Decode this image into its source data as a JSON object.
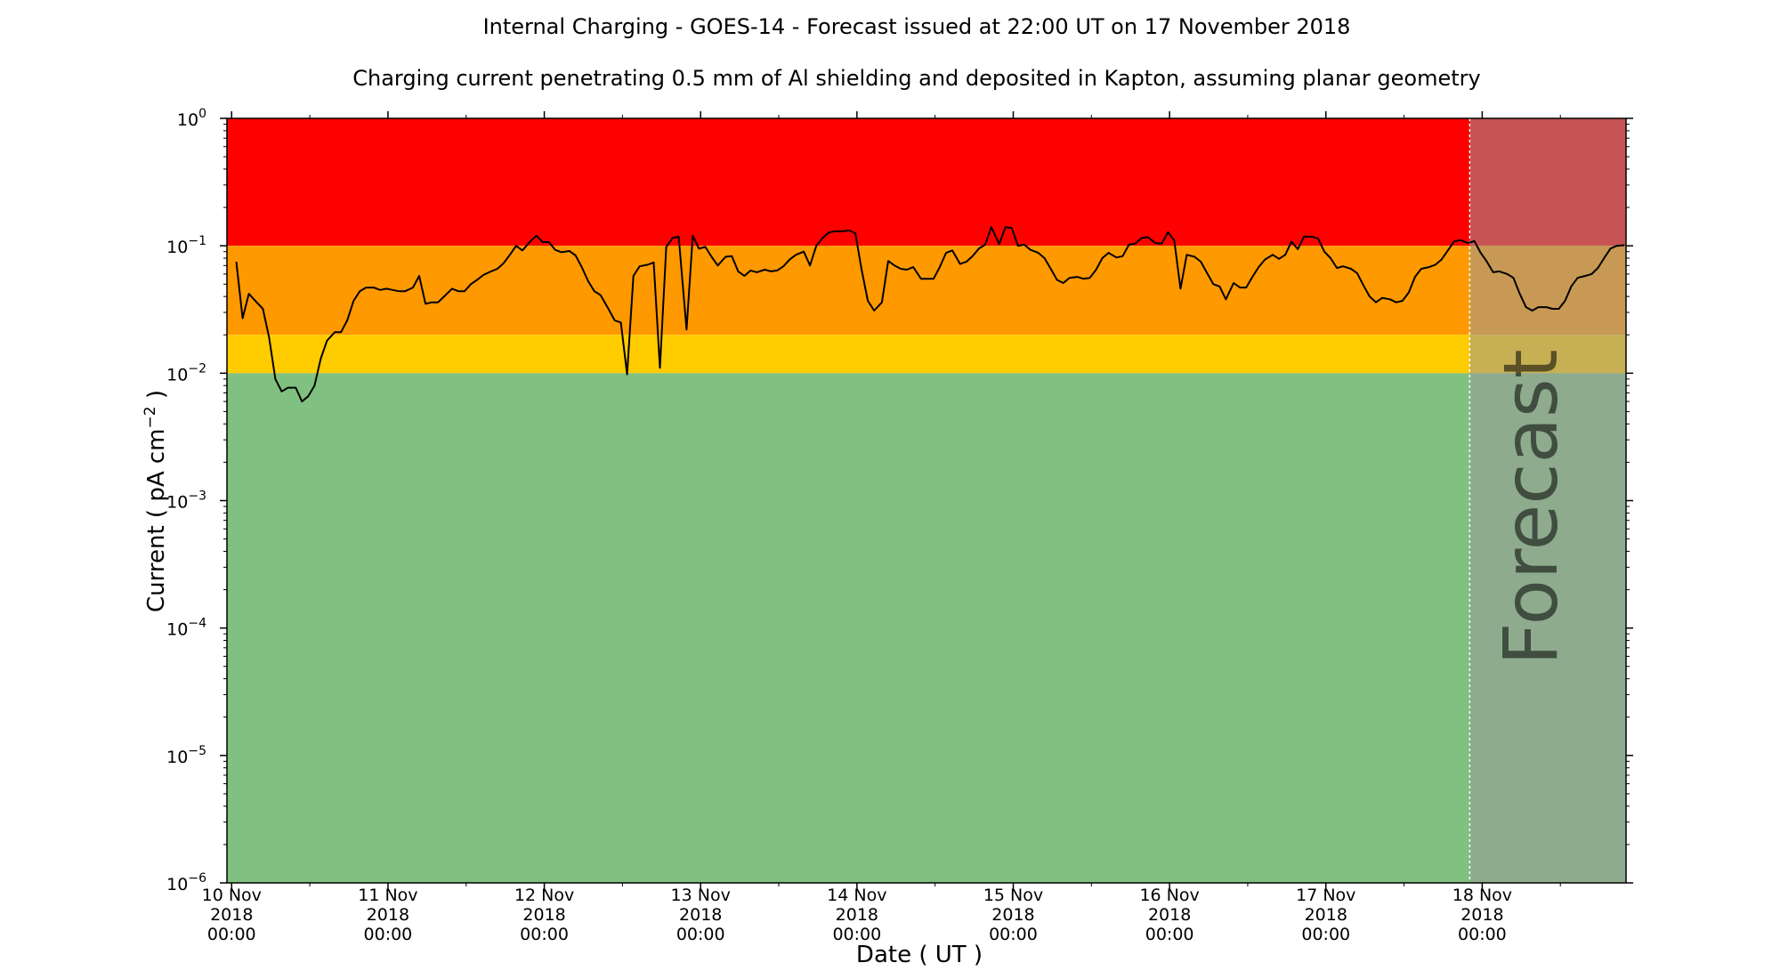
{
  "chart_data": {
    "type": "line",
    "title": "Internal Charging - GOES-14 - Forecast issued at 22:00 UT on 17 November 2018",
    "subtitle": "Charging current penetrating 0.5 mm of Al shielding and deposited in Kapton, assuming planar geometry",
    "xlabel": "Date ( UT )",
    "ylabel": "Current ( pA cm",
    "ylabel_unit_exponent": "−2",
    "ylabel_suffix": " )",
    "y_scale": "log",
    "ylim": [
      1e-06,
      1
    ],
    "xlim_days": [
      -0.03,
      8.92
    ],
    "x_ticks": [
      {
        "day": 0,
        "l1": "10 Nov",
        "l2": "2018",
        "l3": "00:00"
      },
      {
        "day": 1,
        "l1": "11 Nov",
        "l2": "2018",
        "l3": "00:00"
      },
      {
        "day": 2,
        "l1": "12 Nov",
        "l2": "2018",
        "l3": "00:00"
      },
      {
        "day": 3,
        "l1": "13 Nov",
        "l2": "2018",
        "l3": "00:00"
      },
      {
        "day": 4,
        "l1": "14 Nov",
        "l2": "2018",
        "l3": "00:00"
      },
      {
        "day": 5,
        "l1": "15 Nov",
        "l2": "2018",
        "l3": "00:00"
      },
      {
        "day": 6,
        "l1": "16 Nov",
        "l2": "2018",
        "l3": "00:00"
      },
      {
        "day": 7,
        "l1": "17 Nov",
        "l2": "2018",
        "l3": "00:00"
      },
      {
        "day": 8,
        "l1": "18 Nov",
        "l2": "2018",
        "l3": "00:00"
      }
    ],
    "y_ticks": [
      {
        "value": 1,
        "base": "10",
        "exp": "0"
      },
      {
        "value": 0.1,
        "base": "10",
        "exp": "−1"
      },
      {
        "value": 0.01,
        "base": "10",
        "exp": "−2"
      },
      {
        "value": 0.001,
        "base": "10",
        "exp": "−3"
      },
      {
        "value": 0.0001,
        "base": "10",
        "exp": "−4"
      },
      {
        "value": 1e-05,
        "base": "10",
        "exp": "−5"
      },
      {
        "value": 1e-06,
        "base": "10",
        "exp": "−6"
      }
    ],
    "bands": [
      {
        "level": "red",
        "from": 0.1,
        "to": 1,
        "color": "#ff0000"
      },
      {
        "level": "orange",
        "from": 0.02,
        "to": 0.1,
        "color": "#ff9900"
      },
      {
        "level": "yellow",
        "from": 0.01,
        "to": 0.02,
        "color": "#ffcc00"
      },
      {
        "level": "green",
        "from": 1e-06,
        "to": 0.01,
        "color": "#80c080"
      }
    ],
    "forecast": {
      "start_day": 7.92,
      "label": "Forecast",
      "shade_color": "#999999",
      "shade_opacity": 0.55
    },
    "series": [
      {
        "line_color": "#000000",
        "points": [
          [
            0.03,
            0.075
          ],
          [
            0.07,
            0.027
          ],
          [
            0.11,
            0.042
          ],
          [
            0.16,
            0.036
          ],
          [
            0.2,
            0.032
          ],
          [
            0.24,
            0.019
          ],
          [
            0.28,
            0.009
          ],
          [
            0.32,
            0.0072
          ],
          [
            0.36,
            0.0077
          ],
          [
            0.41,
            0.0077
          ],
          [
            0.45,
            0.006
          ],
          [
            0.49,
            0.0066
          ],
          [
            0.53,
            0.008
          ],
          [
            0.57,
            0.013
          ],
          [
            0.61,
            0.018
          ],
          [
            0.66,
            0.021
          ],
          [
            0.7,
            0.021
          ],
          [
            0.74,
            0.026
          ],
          [
            0.78,
            0.037
          ],
          [
            0.82,
            0.044
          ],
          [
            0.86,
            0.047
          ],
          [
            0.91,
            0.047
          ],
          [
            0.95,
            0.045
          ],
          [
            0.99,
            0.046
          ],
          [
            1.03,
            0.045
          ],
          [
            1.07,
            0.044
          ],
          [
            1.11,
            0.044
          ],
          [
            1.16,
            0.047
          ],
          [
            1.2,
            0.058
          ],
          [
            1.24,
            0.035
          ],
          [
            1.28,
            0.036
          ],
          [
            1.32,
            0.036
          ],
          [
            1.36,
            0.04
          ],
          [
            1.41,
            0.046
          ],
          [
            1.45,
            0.044
          ],
          [
            1.49,
            0.044
          ],
          [
            1.53,
            0.05
          ],
          [
            1.57,
            0.054
          ],
          [
            1.61,
            0.059
          ],
          [
            1.66,
            0.063
          ],
          [
            1.7,
            0.066
          ],
          [
            1.74,
            0.073
          ],
          [
            1.78,
            0.085
          ],
          [
            1.82,
            0.1
          ],
          [
            1.86,
            0.092
          ],
          [
            1.91,
            0.108
          ],
          [
            1.95,
            0.12
          ],
          [
            1.99,
            0.107
          ],
          [
            2.03,
            0.107
          ],
          [
            2.07,
            0.093
          ],
          [
            2.11,
            0.089
          ],
          [
            2.16,
            0.091
          ],
          [
            2.2,
            0.084
          ],
          [
            2.24,
            0.068
          ],
          [
            2.28,
            0.053
          ],
          [
            2.32,
            0.044
          ],
          [
            2.36,
            0.041
          ],
          [
            2.41,
            0.032
          ],
          [
            2.45,
            0.026
          ],
          [
            2.49,
            0.025
          ],
          [
            2.53,
            0.0098
          ],
          [
            2.57,
            0.058
          ],
          [
            2.61,
            0.069
          ],
          [
            2.66,
            0.071
          ],
          [
            2.7,
            0.074
          ],
          [
            2.74,
            0.011
          ],
          [
            2.78,
            0.098
          ],
          [
            2.82,
            0.115
          ],
          [
            2.86,
            0.118
          ],
          [
            2.91,
            0.022
          ],
          [
            2.95,
            0.12
          ],
          [
            2.99,
            0.095
          ],
          [
            3.03,
            0.098
          ],
          [
            3.07,
            0.082
          ],
          [
            3.11,
            0.07
          ],
          [
            3.16,
            0.082
          ],
          [
            3.2,
            0.083
          ],
          [
            3.24,
            0.063
          ],
          [
            3.28,
            0.058
          ],
          [
            3.32,
            0.064
          ],
          [
            3.36,
            0.062
          ],
          [
            3.41,
            0.065
          ],
          [
            3.45,
            0.063
          ],
          [
            3.49,
            0.064
          ],
          [
            3.53,
            0.069
          ],
          [
            3.57,
            0.078
          ],
          [
            3.61,
            0.085
          ],
          [
            3.66,
            0.09
          ],
          [
            3.7,
            0.07
          ],
          [
            3.74,
            0.1
          ],
          [
            3.78,
            0.115
          ],
          [
            3.82,
            0.127
          ],
          [
            3.86,
            0.13
          ],
          [
            3.91,
            0.13
          ],
          [
            3.95,
            0.132
          ],
          [
            3.99,
            0.125
          ],
          [
            4.03,
            0.065
          ],
          [
            4.07,
            0.037
          ],
          [
            4.11,
            0.031
          ],
          [
            4.16,
            0.036
          ],
          [
            4.2,
            0.076
          ],
          [
            4.24,
            0.07
          ],
          [
            4.28,
            0.066
          ],
          [
            4.32,
            0.065
          ],
          [
            4.36,
            0.068
          ],
          [
            4.41,
            0.055
          ],
          [
            4.45,
            0.055
          ],
          [
            4.49,
            0.055
          ],
          [
            4.53,
            0.068
          ],
          [
            4.57,
            0.088
          ],
          [
            4.61,
            0.092
          ],
          [
            4.66,
            0.072
          ],
          [
            4.7,
            0.075
          ],
          [
            4.74,
            0.083
          ],
          [
            4.78,
            0.095
          ],
          [
            4.82,
            0.102
          ],
          [
            4.86,
            0.14
          ],
          [
            4.91,
            0.103
          ],
          [
            4.95,
            0.14
          ],
          [
            4.99,
            0.138
          ],
          [
            5.03,
            0.1
          ],
          [
            5.07,
            0.102
          ],
          [
            5.11,
            0.093
          ],
          [
            5.16,
            0.088
          ],
          [
            5.2,
            0.08
          ],
          [
            5.24,
            0.066
          ],
          [
            5.28,
            0.054
          ],
          [
            5.32,
            0.051
          ],
          [
            5.36,
            0.056
          ],
          [
            5.41,
            0.057
          ],
          [
            5.45,
            0.055
          ],
          [
            5.49,
            0.056
          ],
          [
            5.53,
            0.065
          ],
          [
            5.57,
            0.08
          ],
          [
            5.61,
            0.088
          ],
          [
            5.66,
            0.081
          ],
          [
            5.7,
            0.083
          ],
          [
            5.74,
            0.102
          ],
          [
            5.78,
            0.104
          ],
          [
            5.82,
            0.115
          ],
          [
            5.86,
            0.117
          ],
          [
            5.91,
            0.105
          ],
          [
            5.95,
            0.104
          ],
          [
            5.99,
            0.128
          ],
          [
            6.03,
            0.11
          ],
          [
            6.07,
            0.046
          ],
          [
            6.11,
            0.085
          ],
          [
            6.16,
            0.082
          ],
          [
            6.2,
            0.075
          ],
          [
            6.24,
            0.061
          ],
          [
            6.28,
            0.05
          ],
          [
            6.32,
            0.048
          ],
          [
            6.36,
            0.038
          ],
          [
            6.41,
            0.051
          ],
          [
            6.45,
            0.047
          ],
          [
            6.49,
            0.047
          ],
          [
            6.53,
            0.057
          ],
          [
            6.57,
            0.068
          ],
          [
            6.61,
            0.078
          ],
          [
            6.66,
            0.085
          ],
          [
            6.7,
            0.079
          ],
          [
            6.74,
            0.085
          ],
          [
            6.78,
            0.108
          ],
          [
            6.82,
            0.094
          ],
          [
            6.86,
            0.118
          ],
          [
            6.91,
            0.118
          ],
          [
            6.95,
            0.114
          ],
          [
            6.99,
            0.09
          ],
          [
            7.03,
            0.08
          ],
          [
            7.07,
            0.067
          ],
          [
            7.11,
            0.069
          ],
          [
            7.16,
            0.066
          ],
          [
            7.2,
            0.061
          ],
          [
            7.24,
            0.049
          ],
          [
            7.28,
            0.04
          ],
          [
            7.32,
            0.036
          ],
          [
            7.36,
            0.039
          ],
          [
            7.41,
            0.038
          ],
          [
            7.45,
            0.036
          ],
          [
            7.49,
            0.037
          ],
          [
            7.53,
            0.043
          ],
          [
            7.57,
            0.057
          ],
          [
            7.61,
            0.066
          ],
          [
            7.66,
            0.068
          ],
          [
            7.7,
            0.071
          ],
          [
            7.74,
            0.078
          ],
          [
            7.78,
            0.092
          ],
          [
            7.82,
            0.108
          ],
          [
            7.86,
            0.111
          ],
          [
            7.91,
            0.105
          ],
          [
            7.95,
            0.109
          ],
          [
            7.99,
            0.088
          ],
          [
            8.03,
            0.075
          ],
          [
            8.07,
            0.062
          ],
          [
            8.11,
            0.063
          ],
          [
            8.16,
            0.06
          ],
          [
            8.2,
            0.056
          ],
          [
            8.24,
            0.042
          ],
          [
            8.28,
            0.033
          ],
          [
            8.32,
            0.031
          ],
          [
            8.36,
            0.033
          ],
          [
            8.41,
            0.033
          ],
          [
            8.45,
            0.032
          ],
          [
            8.49,
            0.032
          ],
          [
            8.53,
            0.037
          ],
          [
            8.57,
            0.048
          ],
          [
            8.61,
            0.056
          ],
          [
            8.66,
            0.058
          ],
          [
            8.7,
            0.06
          ],
          [
            8.74,
            0.067
          ],
          [
            8.78,
            0.08
          ],
          [
            8.82,
            0.095
          ],
          [
            8.86,
            0.1
          ],
          [
            8.91,
            0.101
          ]
        ]
      }
    ]
  }
}
